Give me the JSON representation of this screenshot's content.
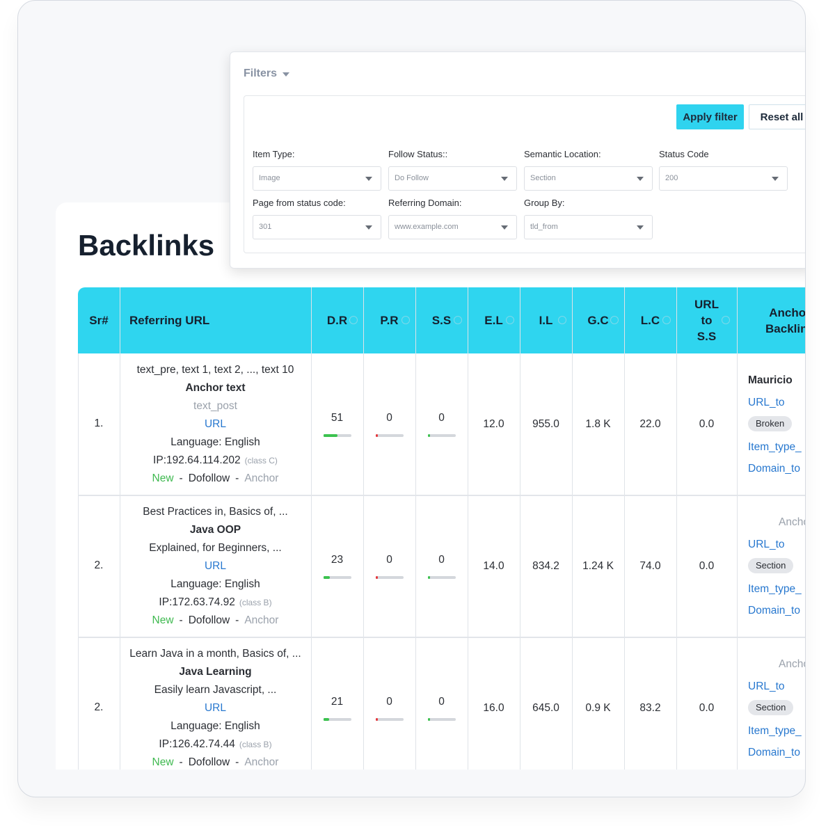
{
  "filters": {
    "title": "Filters",
    "apply": "Apply filter",
    "reset": "Reset all",
    "fields": [
      {
        "label": "Item Type:",
        "value": "Image"
      },
      {
        "label": "Follow Status::",
        "value": "Do Follow"
      },
      {
        "label": "Semantic Location:",
        "value": "Section"
      },
      {
        "label": "Status Code",
        "value": "200"
      },
      {
        "label": "Page from status code:",
        "value": "301"
      },
      {
        "label": "Referring Domain:",
        "value": "www.example.com"
      },
      {
        "label": "Group By:",
        "value": "tld_from"
      }
    ]
  },
  "page_title": "Backlinks",
  "table": {
    "columns": [
      "Sr#",
      "Referring URL",
      "D.R",
      "P.R",
      "S.S",
      "E.L",
      "I.L",
      "G.C",
      "L.C",
      "URL to S.S",
      "Anchor Backlink"
    ],
    "separator": "-",
    "rows": [
      {
        "sr": "1.",
        "lines": [
          "text_pre, text 1, text 2, ..., text 10",
          "Anchor text",
          "text_post"
        ],
        "url": "URL",
        "language": "Language: English",
        "ip": "IP:192.64.114.202",
        "ip_class": "(class C)",
        "status": "New",
        "follow": "Dofollow",
        "kind": "Anchor",
        "dr": 51,
        "pr": 0,
        "ss": 0,
        "el": "12.0",
        "il": "955.0",
        "gc": "1.8 K",
        "lc": "22.0",
        "url_ss": "0.0",
        "anchor": {
          "name": "Mauricio",
          "url": "URL_to",
          "badge": "Broken",
          "item": "Item_type_",
          "domain": "Domain_to"
        }
      },
      {
        "sr": "2.",
        "lines": [
          "Best Practices in, Basics of, ...",
          "Java OOP",
          "Explained, for Beginners, ..."
        ],
        "url": "URL",
        "language": "Language: English",
        "ip": "IP:172.63.74.92",
        "ip_class": "(class B)",
        "status": "New",
        "follow": "Dofollow",
        "kind": "Anchor",
        "dr": 23,
        "pr": 0,
        "ss": 0,
        "el": "14.0",
        "il": "834.2",
        "gc": "1.24 K",
        "lc": "74.0",
        "url_ss": "0.0",
        "anchor": {
          "name": "Anchor",
          "url": "URL_to",
          "badge": "Section",
          "item": "Item_type_",
          "domain": "Domain_to"
        }
      },
      {
        "sr": "2.",
        "lines": [
          "Learn Java in a month, Basics of, ...",
          "Java Learning",
          "Easily learn Javascript, ..."
        ],
        "url": "URL",
        "language": "Language: English",
        "ip": "IP:126.42.74.44",
        "ip_class": "(class B)",
        "status": "New",
        "follow": "Dofollow",
        "kind": "Anchor",
        "dr": 21,
        "pr": 0,
        "ss": 0,
        "el": "16.0",
        "il": "645.0",
        "gc": "0.9 K",
        "lc": "83.2",
        "url_ss": "0.0",
        "anchor": {
          "name": "Anchor",
          "url": "URL_to",
          "badge": "Section",
          "item": "Item_type_",
          "domain": "Domain_to"
        }
      }
    ]
  }
}
